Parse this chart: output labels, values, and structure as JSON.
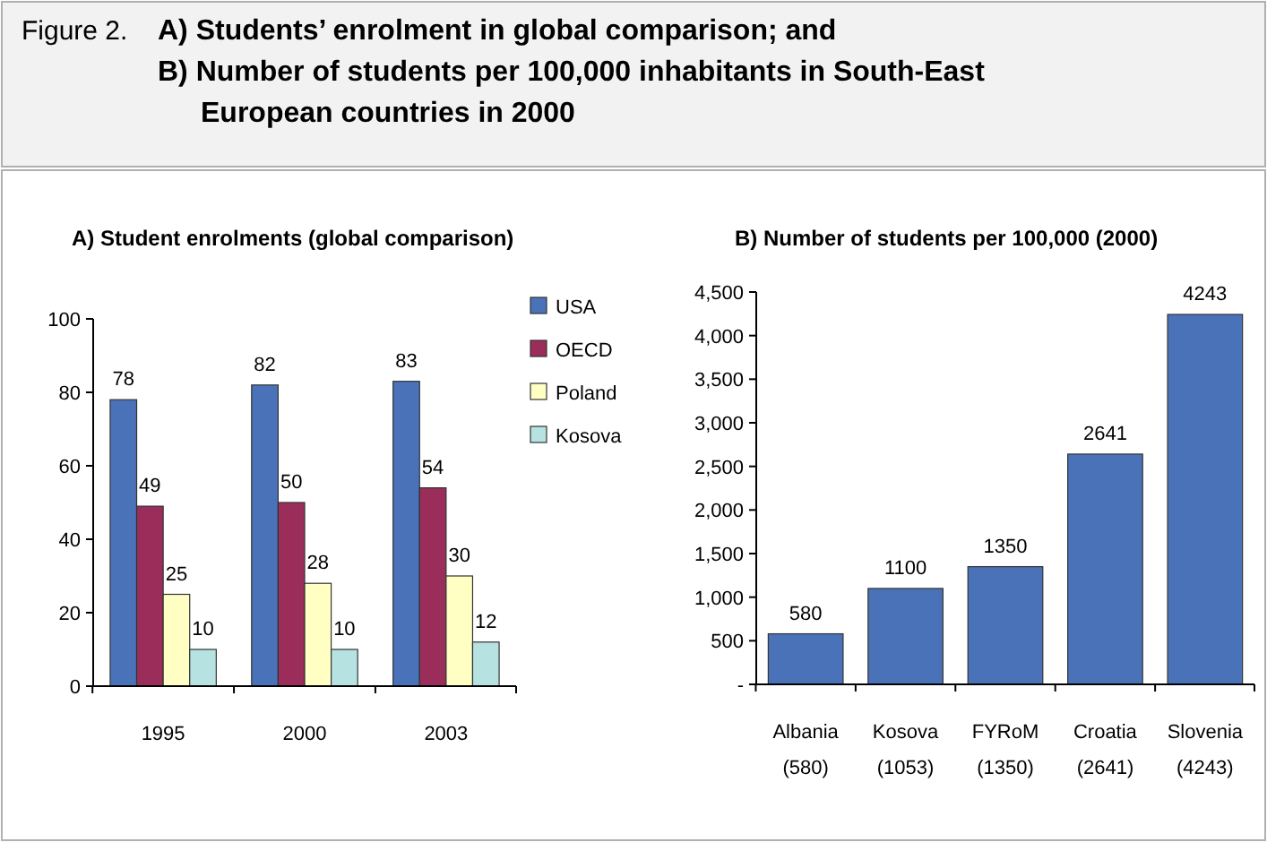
{
  "chart_data": [
    {
      "type": "other",
      "title": "Figure 2.",
      "subtitle": "A) Students’ enrolment in global comparison; and B) Number of students per 100,000 inhabitants  in South-East European countries in 2000"
    },
    {
      "type": "bar",
      "title": "A) Student enrolments (global comparison)",
      "categories": [
        "1995",
        "2000",
        "2003"
      ],
      "series": [
        {
          "name": "USA",
          "color": "#4a72b8",
          "values": [
            78,
            82,
            83
          ]
        },
        {
          "name": "OECD",
          "color": "#9b2d5a",
          "values": [
            49,
            50,
            54
          ]
        },
        {
          "name": "Poland",
          "color": "#ffffc4",
          "values": [
            25,
            28,
            30
          ]
        },
        {
          "name": "Kosova",
          "color": "#b6e2e2",
          "values": [
            10,
            10,
            12
          ]
        }
      ],
      "ylim": [
        0,
        100
      ],
      "yticks": [
        0,
        20,
        40,
        60,
        80,
        100
      ],
      "data_labels": true,
      "legend": "right",
      "grid": false
    },
    {
      "type": "bar",
      "title": "B) Number of students per 100,000 (2000)",
      "categories": [
        "Albania (580)",
        "Kosova (1053)",
        "FYRoM (1350)",
        "Croatia (2641)",
        "Slovenia (4243)"
      ],
      "values": [
        580,
        1100,
        1350,
        2641,
        4243
      ],
      "color": "#4a72b8",
      "ylim": [
        0,
        4500
      ],
      "yticks": [
        {
          "value": 0,
          "label": "-"
        },
        {
          "value": 500,
          "label": "500"
        },
        {
          "value": 1000,
          "label": "1,000"
        },
        {
          "value": 1500,
          "label": "1,500"
        },
        {
          "value": 2000,
          "label": "2,000"
        },
        {
          "value": 2500,
          "label": "2,500"
        },
        {
          "value": 3000,
          "label": "3,000"
        },
        {
          "value": 3500,
          "label": "3,500"
        },
        {
          "value": 4000,
          "label": "4,000"
        },
        {
          "value": 4500,
          "label": "4,500"
        }
      ],
      "data_labels": true,
      "grid": false
    }
  ]
}
